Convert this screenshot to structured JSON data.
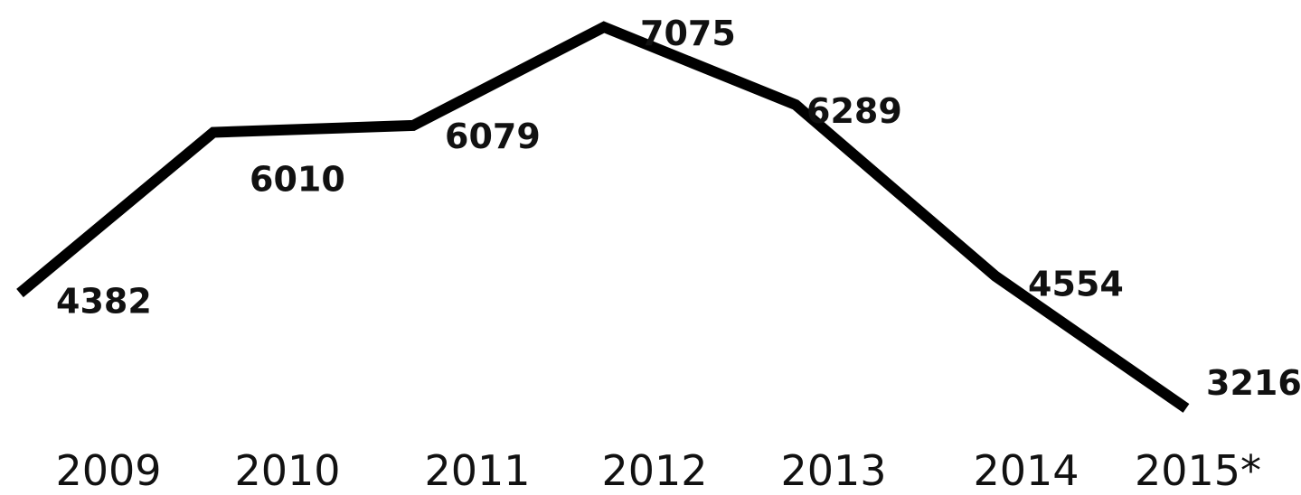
{
  "chart_data": {
    "type": "line",
    "title": "",
    "xlabel": "",
    "ylabel": "",
    "grid": false,
    "legend": "none",
    "categories": [
      "2009",
      "2010",
      "2011",
      "2012",
      "2013",
      "2014",
      "2015*"
    ],
    "series": [
      {
        "values": [
          4382,
          6010,
          6079,
          7075,
          6289,
          4554,
          3216
        ],
        "color": "#000000"
      }
    ],
    "ylim": [
      3000,
      7200
    ]
  }
}
